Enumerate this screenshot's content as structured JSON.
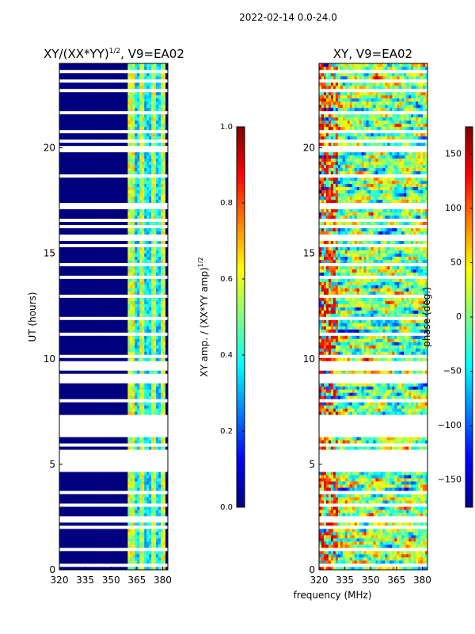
{
  "figure_title": "2022-02-14 0.0-24.0",
  "shared_xlabel": "frequency (MHz)",
  "colors": {
    "jet": [
      "#00007f",
      "#0000ff",
      "#007fff",
      "#00ffff",
      "#7fff7f",
      "#ffff00",
      "#ff7f00",
      "#ff0000",
      "#7f0000"
    ],
    "background": "#ffffff",
    "flagged_row": "#ffffff"
  },
  "chart_data": [
    {
      "type": "heatmap",
      "title": "XY/(XX*YY)^(1/2), V9=EA02",
      "title_main": "XY/(XX*YY)",
      "title_exp": "1/2",
      "title_suffix": ", V9=EA02",
      "xlabel": "",
      "ylabel": "UT (hours)",
      "xlim": [
        320,
        383
      ],
      "ylim": [
        0,
        24
      ],
      "xticks": [
        320,
        335,
        350,
        365,
        380
      ],
      "yticks": [
        0,
        5,
        10,
        15,
        20
      ],
      "colorbar": {
        "label_main": "XY amp. / (XX*YY amp)",
        "label_exp": "1/2",
        "range": [
          0.0,
          1.0
        ],
        "ticks": [
          "0.0",
          "0.2",
          "0.4",
          "0.6",
          "0.8",
          "1.0"
        ]
      },
      "description_band": {
        "low_freq_value": 0.0,
        "active_band_MHz": [
          360,
          382
        ],
        "active_values": [
          0.3,
          0.7
        ]
      }
    },
    {
      "type": "heatmap",
      "title": "XY, V9=EA02",
      "xlabel": "frequency (MHz)",
      "ylabel": "",
      "xlim": [
        320,
        383
      ],
      "ylim": [
        0,
        24
      ],
      "xticks": [
        320,
        335,
        350,
        365,
        380
      ],
      "yticks": [
        0,
        5,
        10,
        15,
        20
      ],
      "colorbar": {
        "label_main": "phase (deg.)",
        "range": [
          -180,
          180
        ],
        "ticks": [
          "−150",
          "−100",
          "−50",
          "0",
          "50",
          "100",
          "150"
        ]
      }
    }
  ]
}
